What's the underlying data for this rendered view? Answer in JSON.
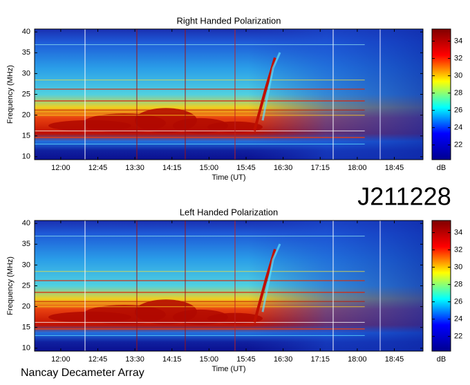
{
  "chart_data": [
    {
      "type": "spectrogram",
      "title": "Right Handed Polarization",
      "xlabel": "Time (UT)",
      "ylabel": "Frequency (MHz)",
      "xlim": [
        11.47,
        19.33
      ],
      "xticks": [
        {
          "value": 12,
          "label": "12:00"
        },
        {
          "value": 12.75,
          "label": "12:45"
        },
        {
          "value": 13.5,
          "label": "13:30"
        },
        {
          "value": 14.25,
          "label": "14:15"
        },
        {
          "value": 15,
          "label": "15:00"
        },
        {
          "value": 15.75,
          "label": "15:45"
        },
        {
          "value": 16.5,
          "label": "16:30"
        },
        {
          "value": 17.25,
          "label": "17:15"
        },
        {
          "value": 18,
          "label": "18:00"
        },
        {
          "value": 18.75,
          "label": "18:45"
        }
      ],
      "ylim": [
        9.3,
        40.7
      ],
      "yticks": [
        10,
        15,
        20,
        25,
        30,
        35,
        40
      ],
      "colorbar_label": "dB",
      "clim": [
        20.3,
        35.4
      ],
      "cticks": [
        22,
        24,
        26,
        28,
        30,
        32,
        34
      ],
      "colormap": [
        "#00008f",
        "#0000ff",
        "#00ffff",
        "#ffff00",
        "#ff0000",
        "#800000"
      ]
    },
    {
      "type": "spectrogram",
      "title": "Left Handed Polarization",
      "xlabel": "Time (UT)",
      "ylabel": "Frequency (MHz)",
      "xlim": [
        11.47,
        19.33
      ],
      "xticks": [
        {
          "value": 12,
          "label": "12:00"
        },
        {
          "value": 12.75,
          "label": "12:45"
        },
        {
          "value": 13.5,
          "label": "13:30"
        },
        {
          "value": 14.25,
          "label": "14:15"
        },
        {
          "value": 15,
          "label": "15:00"
        },
        {
          "value": 15.75,
          "label": "15:45"
        },
        {
          "value": 16.5,
          "label": "16:30"
        },
        {
          "value": 17.25,
          "label": "17:15"
        },
        {
          "value": 18,
          "label": "18:00"
        },
        {
          "value": 18.75,
          "label": "18:45"
        }
      ],
      "ylim": [
        9.3,
        40.7
      ],
      "yticks": [
        10,
        15,
        20,
        25,
        30,
        35,
        40
      ],
      "colorbar_label": "dB",
      "clim": [
        20.3,
        35.4
      ],
      "cticks": [
        22,
        24,
        26,
        28,
        30,
        32,
        34
      ],
      "colormap": [
        "#00008f",
        "#0000ff",
        "#00ffff",
        "#ffff00",
        "#ff0000",
        "#800000"
      ]
    }
  ],
  "date_label": "J211228",
  "footer": "Nancay Decameter Array"
}
